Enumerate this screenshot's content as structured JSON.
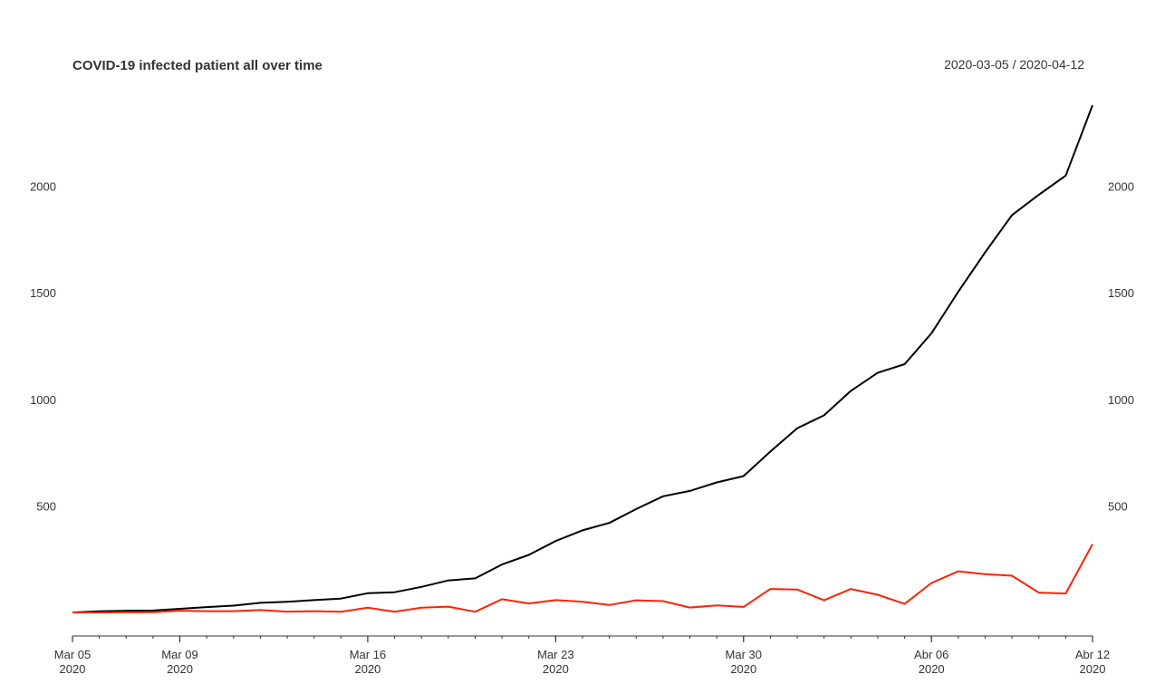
{
  "chart_data": {
    "type": "line",
    "title": "COVID-19 infected patient all over time",
    "date_range": "2020-03-05 / 2020-04-12",
    "xlabel": "",
    "ylabel": "",
    "ylim": [
      -120,
      2380
    ],
    "yticks": [
      500,
      1000,
      1500,
      2000
    ],
    "xticks": [
      {
        "date": "2020-03-05",
        "label": "Mar 05",
        "year": "2020"
      },
      {
        "date": "2020-03-09",
        "label": "Mar 09",
        "year": "2020"
      },
      {
        "date": "2020-03-16",
        "label": "Mar 16",
        "year": "2020"
      },
      {
        "date": "2020-03-23",
        "label": "Mar 23",
        "year": "2020"
      },
      {
        "date": "2020-03-30",
        "label": "Mar 30",
        "year": "2020"
      },
      {
        "date": "2020-04-06",
        "label": "Abr 06",
        "year": "2020"
      },
      {
        "date": "2020-04-12",
        "label": "Abr 12",
        "year": "2020"
      }
    ],
    "grid": false,
    "x": [
      "2020-03-05",
      "2020-03-06",
      "2020-03-07",
      "2020-03-08",
      "2020-03-09",
      "2020-03-10",
      "2020-03-11",
      "2020-03-12",
      "2020-03-13",
      "2020-03-14",
      "2020-03-15",
      "2020-03-16",
      "2020-03-17",
      "2020-03-18",
      "2020-03-19",
      "2020-03-20",
      "2020-03-21",
      "2020-03-22",
      "2020-03-23",
      "2020-03-24",
      "2020-03-25",
      "2020-03-26",
      "2020-03-27",
      "2020-03-28",
      "2020-03-29",
      "2020-03-30",
      "2020-03-31",
      "2020-04-01",
      "2020-04-02",
      "2020-04-03",
      "2020-04-04",
      "2020-04-05",
      "2020-04-06",
      "2020-04-07",
      "2020-04-08",
      "2020-04-09",
      "2020-04-10",
      "2020-04-11",
      "2020-04-12"
    ],
    "series": [
      {
        "color": "#000000",
        "values": [
          0,
          5,
          8,
          9,
          17,
          25,
          32,
          45,
          50,
          58,
          65,
          90,
          95,
          120,
          150,
          160,
          225,
          270,
          335,
          385,
          420,
          485,
          545,
          570,
          610,
          640,
          755,
          865,
          925,
          1040,
          1125,
          1165,
          1310,
          1505,
          1690,
          1865,
          1960,
          2050,
          2380
        ]
      },
      {
        "color": "#ff2200",
        "values": [
          0,
          0,
          1,
          1,
          8,
          6,
          6,
          11,
          4,
          6,
          3,
          22,
          3,
          22,
          27,
          3,
          62,
          42,
          58,
          50,
          35,
          57,
          53,
          23,
          33,
          26,
          110,
          107,
          57,
          110,
          83,
          40,
          138,
          193,
          180,
          172,
          93,
          89,
          320
        ]
      }
    ]
  }
}
